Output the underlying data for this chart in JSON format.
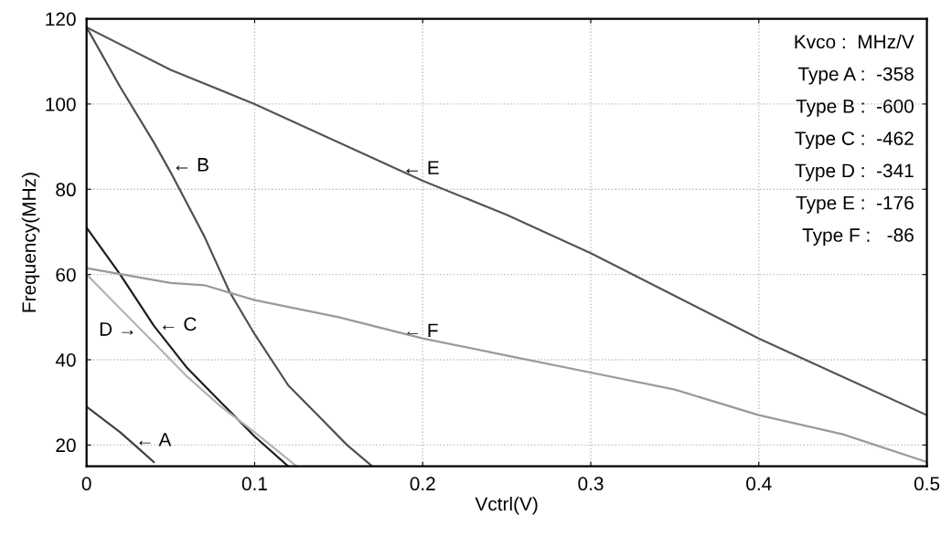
{
  "chart_data": {
    "type": "line",
    "xlabel": "Vctrl(V)",
    "ylabel": "Frequency(MHz)",
    "xlim": [
      0,
      0.5
    ],
    "ylim": [
      15,
      120
    ],
    "xticks": [
      0,
      0.1,
      0.2,
      0.3,
      0.4,
      0.5
    ],
    "yticks": [
      20,
      40,
      60,
      80,
      100,
      120
    ],
    "grid": true,
    "legend": false,
    "marker": "none",
    "line_style": "solid",
    "series": [
      {
        "color": "#404040",
        "x": [
          0,
          0.01,
          0.02,
          0.03,
          0.04
        ],
        "values": [
          29,
          26,
          23,
          19.5,
          16
        ]
      },
      {
        "color": "#505050",
        "x": [
          0,
          0.02,
          0.04,
          0.05,
          0.07,
          0.085,
          0.1,
          0.12,
          0.14,
          0.155,
          0.17
        ],
        "values": [
          118,
          104,
          91,
          84,
          69,
          56,
          46,
          34,
          26,
          20,
          15
        ]
      },
      {
        "color": "#1e1e1e",
        "x": [
          0,
          0.02,
          0.04,
          0.06,
          0.08,
          0.1,
          0.12
        ],
        "values": [
          71,
          60,
          48,
          38,
          30,
          22,
          15
        ]
      },
      {
        "color": "#b4b4b4",
        "x": [
          0,
          0.02,
          0.04,
          0.06,
          0.08,
          0.1,
          0.125
        ],
        "values": [
          60,
          52,
          44,
          36,
          29,
          23,
          15
        ]
      },
      {
        "color": "#555555",
        "x": [
          0,
          0.05,
          0.1,
          0.15,
          0.2,
          0.25,
          0.3,
          0.35,
          0.4,
          0.45,
          0.5
        ],
        "values": [
          118,
          108,
          100,
          91,
          82,
          74,
          65,
          55,
          45,
          36,
          27
        ]
      },
      {
        "color": "#9a9a9a",
        "x": [
          0,
          0.05,
          0.07,
          0.1,
          0.15,
          0.2,
          0.25,
          0.3,
          0.35,
          0.4,
          0.45,
          0.5
        ],
        "values": [
          61.5,
          58,
          57.5,
          54,
          50,
          45,
          41,
          37,
          33,
          27,
          22.5,
          16
        ]
      }
    ],
    "annotations": [
      {
        "text": "← A",
        "x": 0.026,
        "y": 20.9
      },
      {
        "text": "← B",
        "x": 0.048,
        "y": 85.4
      },
      {
        "text": "← C",
        "x": 0.04,
        "y": 48
      },
      {
        "text": "D →",
        "x": 0.033,
        "y": 46.8
      },
      {
        "text": "← E",
        "x": 0.185,
        "y": 84.7
      },
      {
        "text": "← F",
        "x": 0.185,
        "y": 46.5
      },
      "Kvco :  MHz/V",
      "Type A :  -358",
      "Type B :  -600",
      "Type C :  -462",
      "Type D :  -341",
      "Type E :  -176",
      "Type F :   -86"
    ]
  }
}
